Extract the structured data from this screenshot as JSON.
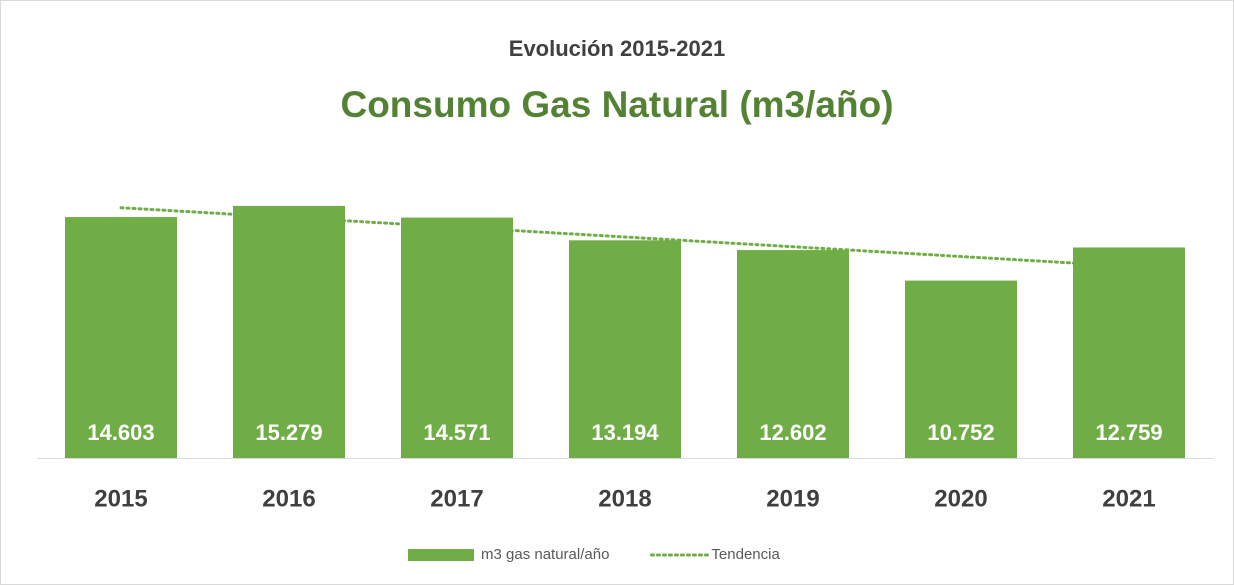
{
  "chart_data": {
    "type": "bar",
    "subtitle": "Evolución 2015-2021",
    "title": "Consumo Gas Natural (m3/año)",
    "categories": [
      "2015",
      "2016",
      "2017",
      "2018",
      "2019",
      "2020",
      "2021"
    ],
    "series": [
      {
        "name": "m3 gas natural/año",
        "color": "#70ad47",
        "values": [
          14603,
          15279,
          14571,
          13194,
          12602,
          10752,
          12759
        ],
        "value_labels": [
          "14.603",
          "15.279",
          "14.571",
          "13.194",
          "12.602",
          "10.752",
          "12.759"
        ]
      },
      {
        "name": "Tendencia",
        "type": "line",
        "color": "#70ad47",
        "values": [
          15168,
          14577,
          13986,
          13394,
          12803,
          12212,
          11621
        ]
      }
    ],
    "ylim": [
      0,
      18000
    ],
    "legend": "bottom"
  }
}
